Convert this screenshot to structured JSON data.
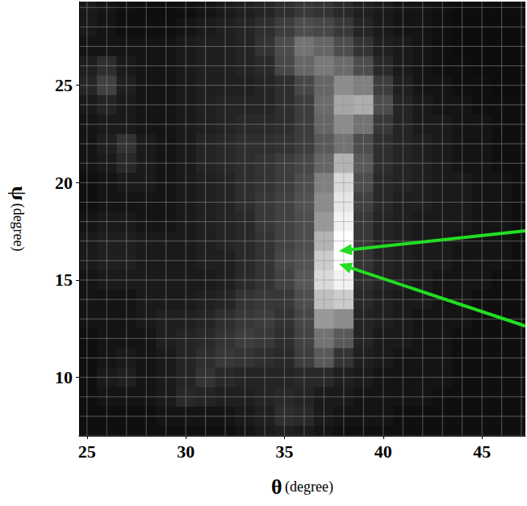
{
  "chart_data": {
    "type": "heatmap",
    "xlabel": "θ (degree)",
    "ylabel": "ψ (degree)",
    "xlim": [
      24.6,
      47.2
    ],
    "ylim": [
      7.0,
      29.3
    ],
    "xticks": [
      25,
      30,
      35,
      40,
      45
    ],
    "yticks": [
      10,
      15,
      20,
      25
    ],
    "grid": true,
    "color_range": [
      0,
      100
    ],
    "x": [
      25,
      26,
      27,
      28,
      29,
      30,
      31,
      32,
      33,
      34,
      35,
      36,
      37,
      38,
      39,
      40,
      41,
      42,
      43,
      44,
      45,
      46,
      47
    ],
    "y": [
      29,
      28,
      27,
      26,
      25,
      24,
      23,
      22,
      21,
      20,
      19,
      18,
      17,
      16,
      15,
      14,
      13,
      12,
      11,
      10,
      9,
      8,
      7
    ],
    "cells": [
      [
        10,
        8,
        6,
        5,
        5,
        6,
        8,
        10,
        12,
        14,
        18,
        22,
        20,
        16,
        12,
        10,
        8,
        8,
        6,
        5,
        5,
        5,
        5
      ],
      [
        10,
        8,
        6,
        6,
        6,
        8,
        10,
        12,
        14,
        18,
        24,
        30,
        28,
        22,
        14,
        10,
        8,
        8,
        6,
        5,
        5,
        5,
        5
      ],
      [
        8,
        8,
        8,
        8,
        8,
        10,
        12,
        12,
        14,
        20,
        30,
        45,
        40,
        30,
        20,
        12,
        10,
        8,
        6,
        5,
        5,
        5,
        5
      ],
      [
        12,
        18,
        10,
        8,
        8,
        10,
        12,
        12,
        14,
        16,
        28,
        40,
        48,
        42,
        30,
        16,
        10,
        8,
        6,
        6,
        5,
        5,
        5
      ],
      [
        15,
        25,
        12,
        8,
        8,
        10,
        12,
        12,
        12,
        14,
        18,
        28,
        40,
        55,
        50,
        24,
        12,
        8,
        8,
        6,
        6,
        5,
        5
      ],
      [
        10,
        14,
        10,
        8,
        8,
        10,
        12,
        14,
        14,
        14,
        18,
        24,
        42,
        65,
        68,
        30,
        14,
        10,
        8,
        8,
        6,
        6,
        6
      ],
      [
        8,
        10,
        10,
        8,
        8,
        10,
        12,
        14,
        16,
        16,
        18,
        24,
        40,
        55,
        45,
        22,
        14,
        10,
        10,
        8,
        8,
        6,
        6
      ],
      [
        8,
        12,
        20,
        10,
        8,
        10,
        14,
        16,
        18,
        18,
        20,
        24,
        35,
        45,
        30,
        18,
        14,
        12,
        10,
        8,
        8,
        6,
        6
      ],
      [
        8,
        10,
        16,
        10,
        8,
        10,
        14,
        16,
        18,
        20,
        24,
        28,
        40,
        70,
        35,
        18,
        14,
        12,
        10,
        8,
        8,
        6,
        6
      ],
      [
        6,
        8,
        10,
        10,
        8,
        10,
        12,
        14,
        18,
        20,
        24,
        30,
        50,
        85,
        30,
        16,
        14,
        12,
        10,
        10,
        8,
        8,
        6
      ],
      [
        6,
        8,
        8,
        8,
        8,
        10,
        12,
        14,
        18,
        22,
        26,
        32,
        55,
        90,
        25,
        16,
        12,
        12,
        10,
        10,
        8,
        8,
        6
      ],
      [
        8,
        10,
        10,
        8,
        8,
        10,
        12,
        14,
        16,
        22,
        26,
        30,
        60,
        95,
        22,
        14,
        12,
        10,
        10,
        10,
        8,
        8,
        6
      ],
      [
        10,
        12,
        12,
        10,
        10,
        10,
        12,
        14,
        16,
        20,
        26,
        30,
        70,
        100,
        22,
        14,
        12,
        10,
        10,
        8,
        8,
        8,
        6
      ],
      [
        10,
        12,
        12,
        10,
        10,
        10,
        12,
        12,
        16,
        20,
        28,
        32,
        80,
        100,
        20,
        14,
        12,
        10,
        10,
        8,
        8,
        8,
        6
      ],
      [
        8,
        10,
        10,
        10,
        10,
        10,
        10,
        12,
        16,
        20,
        26,
        34,
        85,
        95,
        18,
        14,
        12,
        10,
        8,
        8,
        8,
        6,
        6
      ],
      [
        8,
        8,
        8,
        10,
        10,
        10,
        12,
        14,
        20,
        22,
        22,
        30,
        75,
        80,
        16,
        12,
        10,
        10,
        8,
        8,
        6,
        6,
        6
      ],
      [
        8,
        8,
        8,
        10,
        12,
        12,
        14,
        18,
        22,
        24,
        20,
        28,
        60,
        55,
        14,
        12,
        10,
        8,
        8,
        8,
        6,
        6,
        6
      ],
      [
        6,
        8,
        8,
        8,
        12,
        14,
        16,
        20,
        24,
        22,
        18,
        26,
        45,
        35,
        14,
        10,
        10,
        8,
        8,
        6,
        6,
        6,
        6
      ],
      [
        6,
        8,
        10,
        8,
        10,
        14,
        18,
        22,
        20,
        18,
        16,
        24,
        35,
        20,
        12,
        10,
        8,
        8,
        8,
        6,
        6,
        6,
        6
      ],
      [
        6,
        10,
        12,
        8,
        10,
        14,
        20,
        16,
        14,
        14,
        14,
        16,
        16,
        12,
        10,
        8,
        8,
        8,
        8,
        6,
        6,
        6,
        6
      ],
      [
        6,
        8,
        8,
        8,
        10,
        16,
        14,
        12,
        12,
        14,
        16,
        14,
        10,
        10,
        8,
        8,
        8,
        8,
        6,
        6,
        6,
        6,
        6
      ],
      [
        6,
        6,
        6,
        6,
        8,
        8,
        8,
        8,
        10,
        12,
        18,
        16,
        10,
        8,
        8,
        8,
        6,
        6,
        6,
        6,
        6,
        6,
        6
      ],
      [
        6,
        6,
        6,
        6,
        6,
        6,
        6,
        6,
        8,
        10,
        12,
        10,
        8,
        6,
        6,
        6,
        6,
        6,
        6,
        6,
        6,
        6,
        6
      ]
    ]
  }
}
